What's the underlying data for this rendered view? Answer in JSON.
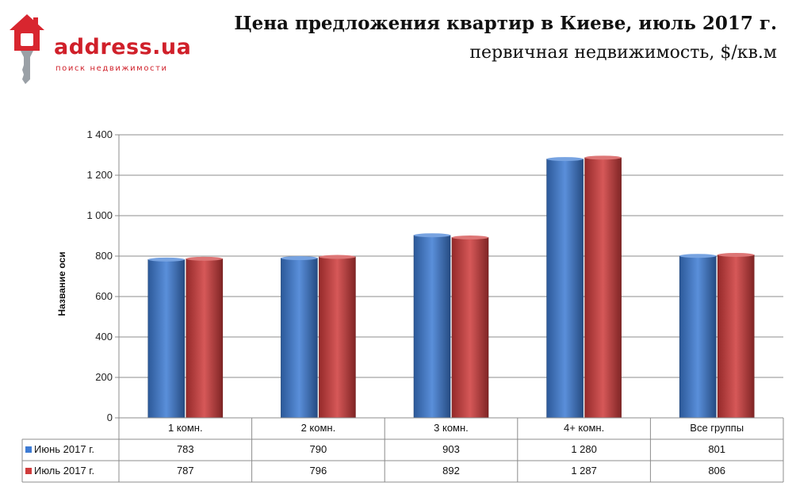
{
  "header": {
    "logo_text": "address.ua",
    "logo_subtext": "поиск недвижимости",
    "title": "Цена предложения квартир в Киеве, июль 2017 г.",
    "subtitle": "первичная недвижимость, $/кв.м"
  },
  "chart_data": {
    "type": "bar",
    "title": "Цена предложения квартир в Киеве, июль 2017 г.",
    "subtitle": "первичная недвижимость, $/кв.м",
    "ylabel": "Название оси",
    "xlabel": "",
    "ylim": [
      0,
      1400
    ],
    "yticks": [
      0,
      200,
      400,
      600,
      800,
      1000,
      1200,
      1400
    ],
    "ytick_labels": [
      "0",
      "200",
      "400",
      "600",
      "800",
      "1 000",
      "1 200",
      "1 400"
    ],
    "grid": true,
    "legend": "data-table",
    "categories": [
      "1 комн.",
      "2 комн.",
      "3 комн.",
      "4+ комн.",
      "Все группы"
    ],
    "series": [
      {
        "name": "Июнь 2017 г.",
        "color": "#3d7bd4",
        "values": [
          783,
          790,
          903,
          1280,
          801
        ],
        "labels": [
          "783",
          "790",
          "903",
          "1 280",
          "801"
        ]
      },
      {
        "name": "Июль 2017 г.",
        "color": "#cf3b3b",
        "values": [
          787,
          796,
          892,
          1287,
          806
        ],
        "labels": [
          "787",
          "796",
          "892",
          "1 287",
          "806"
        ]
      }
    ]
  }
}
